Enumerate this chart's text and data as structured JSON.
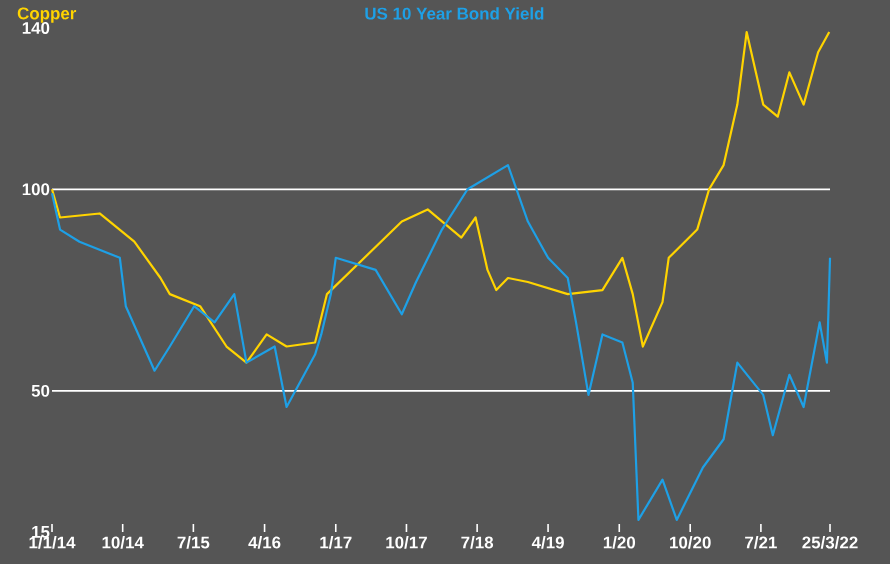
{
  "chart_data": {
    "type": "line",
    "legend": "top",
    "xlim": [
      "2014-01-01",
      "2022-03-25"
    ],
    "xticks": [
      {
        "value": "2014-01-01",
        "label": "1/1/14"
      },
      {
        "value": "2014-10-01",
        "label": "10/14"
      },
      {
        "value": "2015-07-01",
        "label": "7/15"
      },
      {
        "value": "2016-04-01",
        "label": "4/16"
      },
      {
        "value": "2017-01-01",
        "label": "1/17"
      },
      {
        "value": "2017-10-01",
        "label": "10/17"
      },
      {
        "value": "2018-07-01",
        "label": "7/18"
      },
      {
        "value": "2019-04-01",
        "label": "4/19"
      },
      {
        "value": "2020-01-01",
        "label": "1/20"
      },
      {
        "value": "2020-10-01",
        "label": "10/20"
      },
      {
        "value": "2021-07-01",
        "label": "7/21"
      },
      {
        "value": "2022-03-25",
        "label": "25/3/22"
      }
    ],
    "ylim": [
      15,
      140
    ],
    "yticks": [
      15,
      50,
      100,
      140
    ],
    "ref_lines": [
      {
        "axis": "y",
        "value": 50,
        "color": "#ffffff"
      },
      {
        "axis": "y",
        "value": 100,
        "color": "#ffffff"
      }
    ],
    "series": [
      {
        "name": "Copper",
        "color": "#ffd400",
        "x": [
          "2014-01-01",
          "2014-02-01",
          "2014-07-04",
          "2014-11-15",
          "2015-02-24",
          "2015-04-01",
          "2015-07-27",
          "2015-11-06",
          "2016-01-22",
          "2016-04-09",
          "2016-06-25",
          "2016-10-13",
          "2016-11-28",
          "2017-09-13",
          "2017-12-22",
          "2018-05-01",
          "2018-06-25",
          "2018-08-10",
          "2018-09-13",
          "2018-10-28",
          "2019-01-13",
          "2019-06-16",
          "2019-10-28",
          "2020-01-13",
          "2020-02-22",
          "2020-04-01",
          "2020-06-16",
          "2020-07-10",
          "2020-10-28",
          "2020-12-13",
          "2021-02-07",
          "2021-04-01",
          "2021-05-07",
          "2021-07-10",
          "2021-09-04",
          "2021-10-19",
          "2021-12-13",
          "2022-02-07",
          "2022-03-22"
        ],
        "values": [
          100,
          93,
          94,
          87,
          78,
          74,
          71,
          61,
          57,
          64,
          61,
          62,
          74,
          92,
          95,
          88,
          93,
          80,
          75,
          78,
          77,
          74,
          75,
          83,
          74,
          61,
          72,
          83,
          90,
          100,
          106,
          121,
          139,
          121,
          118,
          129,
          121,
          134,
          139
        ]
      },
      {
        "name": "US 10 Year Bond Yield",
        "color": "#1ea0e6",
        "x": [
          "2014-01-01",
          "2014-02-01",
          "2014-04-17",
          "2014-09-20",
          "2014-10-13",
          "2015-02-01",
          "2015-04-01",
          "2015-07-04",
          "2015-09-21",
          "2015-12-06",
          "2016-01-22",
          "2016-05-10",
          "2016-06-25",
          "2016-10-13",
          "2016-11-06",
          "2016-12-13",
          "2017-01-01",
          "2017-06-04",
          "2017-09-13",
          "2017-11-07",
          "2018-02-15",
          "2018-05-25",
          "2018-10-28",
          "2019-01-13",
          "2019-04-01",
          "2019-06-16",
          "2019-07-18",
          "2019-09-04",
          "2019-10-28",
          "2020-01-13",
          "2020-02-22",
          "2020-03-15",
          "2020-06-16",
          "2020-08-10",
          "2020-11-19",
          "2021-02-07",
          "2021-04-01",
          "2021-07-10",
          "2021-08-16",
          "2021-10-19",
          "2021-12-13",
          "2022-02-13",
          "2022-03-13",
          "2022-03-25"
        ],
        "values": [
          99,
          90,
          87,
          83,
          71,
          55,
          61,
          71,
          67,
          74,
          57,
          61,
          46,
          59,
          64,
          74,
          83,
          80,
          69,
          77,
          90,
          100,
          106,
          92,
          83,
          78,
          67,
          49,
          64,
          62,
          52,
          18,
          28,
          18,
          31,
          38,
          57,
          49,
          39,
          54,
          46,
          67,
          57,
          83
        ]
      }
    ]
  }
}
